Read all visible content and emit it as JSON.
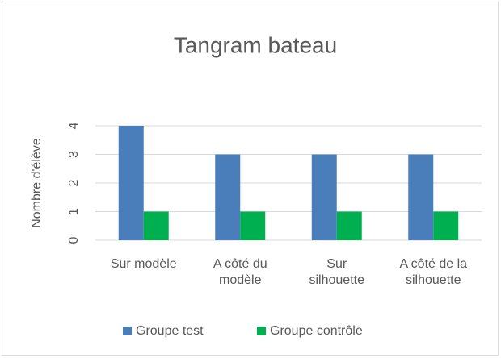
{
  "chart_data": {
    "type": "bar",
    "title": "Tangram bateau",
    "y_label": "Nombre d'élève",
    "categories": [
      "Sur modèle",
      "A côté du\nmodèle",
      "Sur\nsilhouette",
      "A côté de la\nsilhouette"
    ],
    "series": [
      {
        "name": "Groupe test",
        "color": "#4a7ebb",
        "values": [
          4,
          3,
          3,
          3
        ]
      },
      {
        "name": "Groupe contrôle",
        "color": "#00b050",
        "values": [
          1,
          1,
          1,
          1
        ]
      }
    ],
    "ylim": [
      0,
      4
    ],
    "yticks": [
      0,
      1,
      2,
      3,
      4
    ],
    "grid": true,
    "legend": "bottom"
  }
}
